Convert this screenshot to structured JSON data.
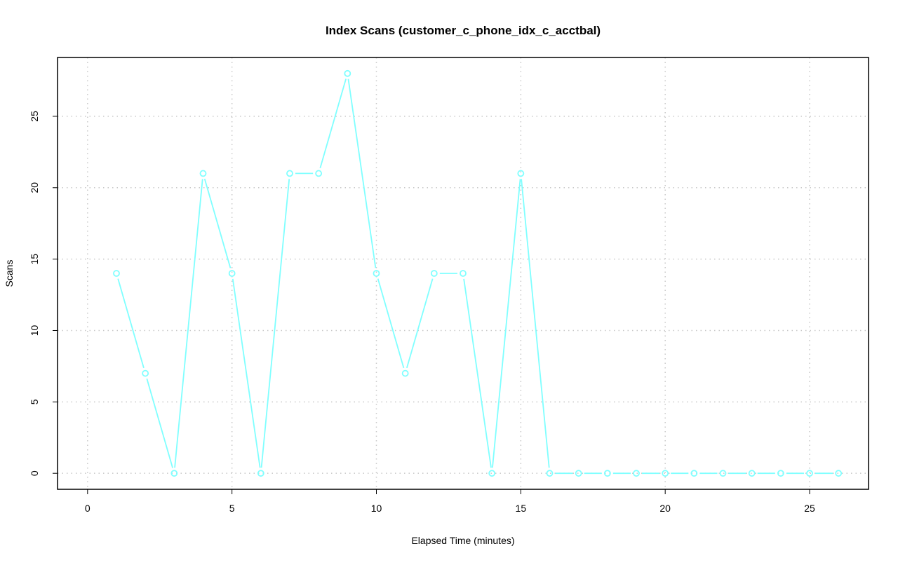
{
  "chart_data": {
    "type": "line",
    "title": "Index Scans (customer_c_phone_idx_c_acctbal)",
    "xlabel": "Elapsed Time (minutes)",
    "ylabel": "Scans",
    "xlim": [
      0,
      26
    ],
    "ylim": [
      0,
      28
    ],
    "xticks": [
      "0",
      "5",
      "10",
      "15",
      "20",
      "25"
    ],
    "yticks": [
      "0",
      "5",
      "10",
      "15",
      "20",
      "25"
    ],
    "grid": true,
    "line_color": "#80ffff",
    "series": [
      {
        "x": [
          1,
          2,
          3,
          4,
          5,
          6,
          7,
          8,
          9,
          10,
          11,
          12,
          13,
          14,
          15,
          16,
          17,
          18,
          19,
          20,
          21,
          22,
          23,
          24,
          25,
          26
        ],
        "values": [
          14,
          7,
          0,
          21,
          14,
          0,
          21,
          21,
          28,
          14,
          7,
          14,
          14,
          0,
          21,
          0,
          0,
          0,
          0,
          0,
          0,
          0,
          0,
          0,
          0,
          0
        ]
      }
    ]
  }
}
